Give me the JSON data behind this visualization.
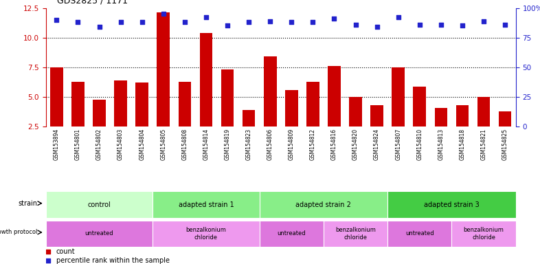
{
  "title": "GDS2825 / 1171",
  "samples": [
    "GSM153894",
    "GSM154801",
    "GSM154802",
    "GSM154803",
    "GSM154804",
    "GSM154805",
    "GSM154808",
    "GSM154814",
    "GSM154819",
    "GSM154823",
    "GSM154806",
    "GSM154809",
    "GSM154812",
    "GSM154816",
    "GSM154820",
    "GSM154824",
    "GSM154807",
    "GSM154810",
    "GSM154813",
    "GSM154818",
    "GSM154821",
    "GSM154825"
  ],
  "bar_values": [
    7.5,
    6.3,
    4.8,
    6.4,
    6.2,
    12.1,
    6.3,
    10.4,
    7.3,
    3.9,
    8.4,
    5.6,
    6.3,
    7.6,
    5.0,
    4.3,
    7.5,
    5.9,
    4.1,
    4.3,
    5.0,
    3.8
  ],
  "dot_values": [
    11.5,
    11.3,
    10.9,
    11.3,
    11.3,
    12.0,
    11.3,
    11.7,
    11.0,
    11.3,
    11.4,
    11.3,
    11.3,
    11.6,
    11.1,
    10.9,
    11.7,
    11.1,
    11.1,
    11.0,
    11.4,
    11.1
  ],
  "ylim_left": [
    2.5,
    12.5
  ],
  "yticks_left": [
    2.5,
    5.0,
    7.5,
    10.0,
    12.5
  ],
  "yticks_right": [
    0,
    25,
    50,
    75,
    100
  ],
  "ytick_labels_right": [
    "0",
    "25",
    "50",
    "75",
    "100%"
  ],
  "bar_color": "#cc0000",
  "dot_color": "#2222cc",
  "strain_groups": [
    {
      "label": "control",
      "start": 0,
      "end": 4,
      "color": "#ccffcc"
    },
    {
      "label": "adapted strain 1",
      "start": 5,
      "end": 9,
      "color": "#88ee88"
    },
    {
      "label": "adapted strain 2",
      "start": 10,
      "end": 15,
      "color": "#88ee88"
    },
    {
      "label": "adapted strain 3",
      "start": 16,
      "end": 21,
      "color": "#44cc44"
    }
  ],
  "growth_groups": [
    {
      "label": "untreated",
      "start": 0,
      "end": 4,
      "color": "#dd77dd"
    },
    {
      "label": "benzalkonium\nchloride",
      "start": 5,
      "end": 9,
      "color": "#ee99ee"
    },
    {
      "label": "untreated",
      "start": 10,
      "end": 12,
      "color": "#dd77dd"
    },
    {
      "label": "benzalkonium\nchloride",
      "start": 13,
      "end": 15,
      "color": "#ee99ee"
    },
    {
      "label": "untreated",
      "start": 16,
      "end": 18,
      "color": "#dd77dd"
    },
    {
      "label": "benzalkonium\nchloride",
      "start": 19,
      "end": 21,
      "color": "#ee99ee"
    }
  ],
  "legend_count_label": "count",
  "legend_dot_label": "percentile rank within the sample",
  "bg_color": "#ffffff",
  "tick_color_left": "#cc0000",
  "tick_color_right": "#2222cc",
  "grid_yticks": [
    5.0,
    7.5,
    10.0
  ],
  "xticklabel_bg": "#cccccc",
  "fig_width": 7.86,
  "fig_height": 3.84,
  "dpi": 100
}
